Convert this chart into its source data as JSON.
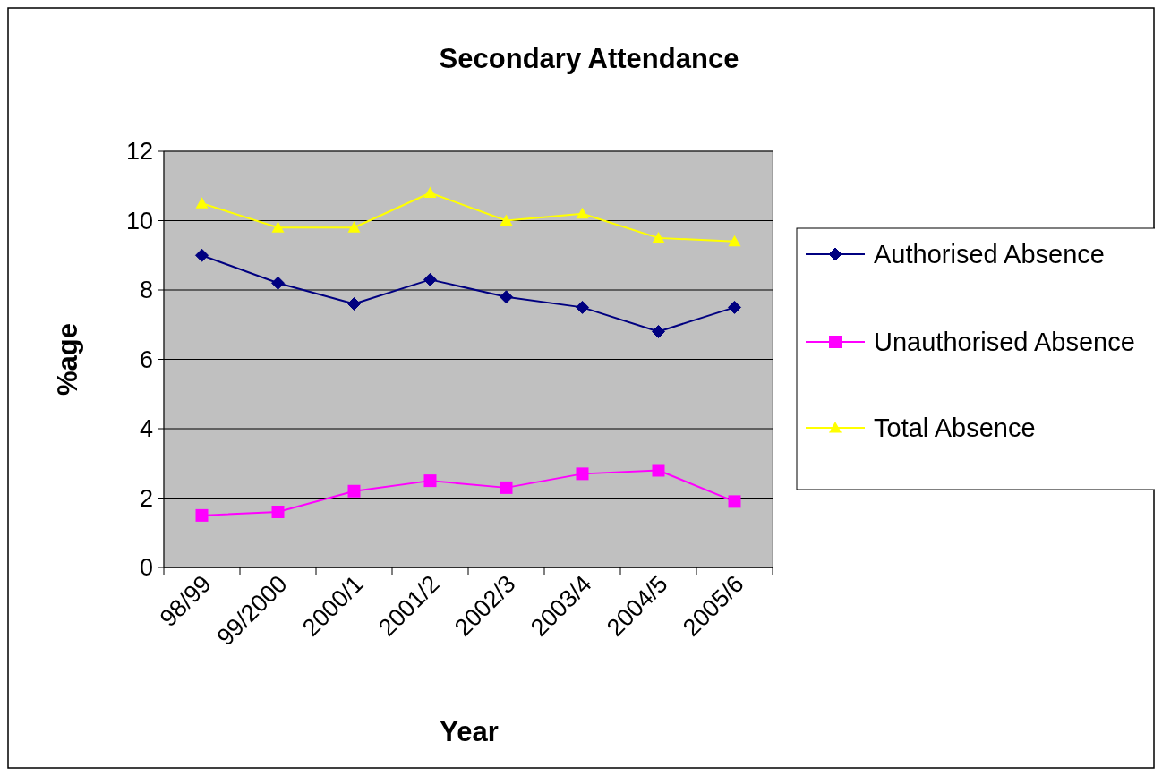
{
  "chart_data": {
    "type": "line",
    "title": "Secondary Attendance",
    "xlabel": "Year",
    "ylabel": "%age",
    "categories": [
      "98/99",
      "99/2000",
      "2000/1",
      "2001/2",
      "2002/3",
      "2003/4",
      "2004/5",
      "2005/6"
    ],
    "series": [
      {
        "name": "Authorised Absence",
        "color": "#000080",
        "marker": "diamond",
        "values": [
          9.0,
          8.2,
          7.6,
          8.3,
          7.8,
          7.5,
          6.8,
          7.5
        ]
      },
      {
        "name": "Unauthorised Absence",
        "color": "#ff00ff",
        "marker": "square",
        "values": [
          1.5,
          1.6,
          2.2,
          2.5,
          2.3,
          2.7,
          2.8,
          1.9
        ]
      },
      {
        "name": "Total Absence",
        "color": "#ffff00",
        "marker": "triangle",
        "values": [
          10.5,
          9.8,
          9.8,
          10.8,
          10.0,
          10.2,
          9.5,
          9.4
        ]
      }
    ],
    "ylim": [
      0,
      12
    ],
    "yticks": [
      0,
      2,
      4,
      6,
      8,
      10,
      12
    ],
    "grid": "y",
    "legend": "right"
  }
}
